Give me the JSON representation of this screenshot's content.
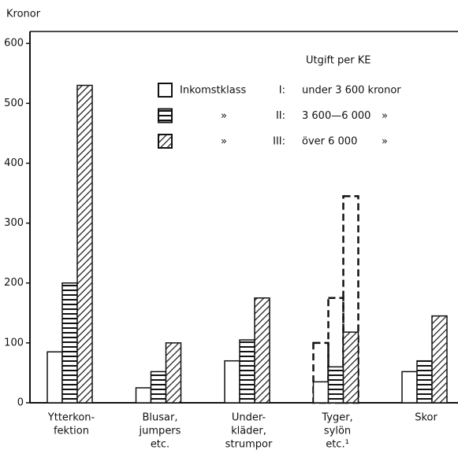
{
  "chart_data": {
    "type": "bar",
    "y_label": "Kronor",
    "legend_title": "Utgift per KE",
    "categories": [
      [
        "Ytterkon-",
        "fektion"
      ],
      [
        "Blusar,",
        "jumpers",
        "etc."
      ],
      [
        "Under-",
        "kläder,",
        "strumpor"
      ],
      [
        "Tyger,",
        "sylön",
        "etc.¹"
      ],
      [
        "Skor"
      ]
    ],
    "series": [
      {
        "prefix": "Inkomstklass",
        "name": "I:",
        "range": "under 3 600 kronor",
        "pattern": "none",
        "color": "#111111",
        "values": [
          85,
          25,
          70,
          35,
          52
        ],
        "dashed_values": [
          null,
          null,
          null,
          100,
          null
        ]
      },
      {
        "prefix": "»",
        "name": "II:",
        "range": "3 600—6 000",
        "suffix": "»",
        "pattern": "horizontal",
        "color": "#111111",
        "values": [
          200,
          52,
          105,
          60,
          70
        ],
        "dashed_values": [
          null,
          null,
          null,
          175,
          null
        ]
      },
      {
        "prefix": "»",
        "name": "III:",
        "range": "över 6 000",
        "suffix": "»",
        "pattern": "diagonal",
        "color": "#111111",
        "values": [
          530,
          100,
          175,
          118,
          145
        ],
        "dashed_values": [
          null,
          null,
          null,
          345,
          null
        ]
      }
    ],
    "ylim": [
      0,
      620
    ],
    "yticks": [
      0,
      100,
      200,
      300,
      400,
      500,
      600
    ],
    "grid": false
  }
}
